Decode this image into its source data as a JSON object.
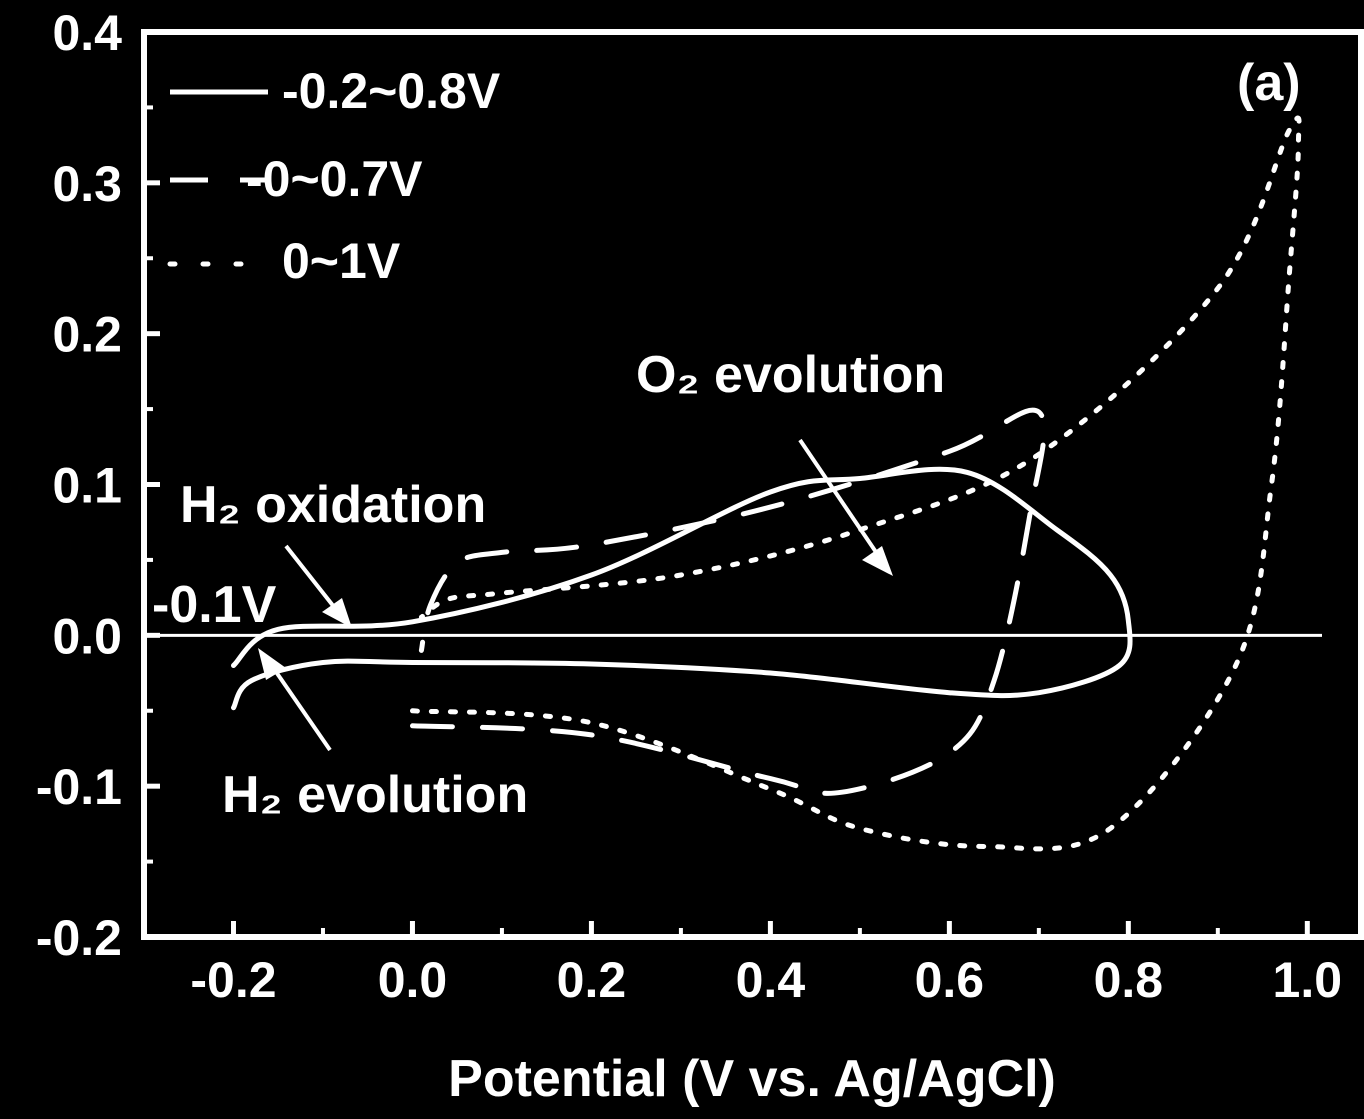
{
  "chart_data": {
    "type": "line",
    "panel_label": "(a)",
    "xlabel": "Potential (V vs. Ag/AgCl)",
    "ylabel": "",
    "xlim": [
      -0.3,
      1.06
    ],
    "ylim": [
      -0.2,
      0.4
    ],
    "x_ticks": [
      -0.2,
      0.0,
      0.2,
      0.4,
      0.6,
      0.8,
      1.0
    ],
    "x_tick_labels": [
      "-0.2",
      "0.0",
      "0.2",
      "0.4",
      "0.6",
      "0.8",
      "1.0"
    ],
    "y_ticks": [
      -0.2,
      -0.1,
      0.0,
      0.1,
      0.2,
      0.3,
      0.4
    ],
    "y_tick_labels": [
      "-0.2",
      "-0.1",
      "0.0",
      "0.1",
      "0.2",
      "0.3",
      "0.4"
    ],
    "zero_line": 0.0,
    "legend_position": "top-left",
    "series": [
      {
        "name": "-0.2~0.8V",
        "style": "solid",
        "x": [
          -0.2,
          -0.18,
          -0.1,
          0.0,
          0.2,
          0.4,
          0.6,
          0.7,
          0.79,
          0.8,
          0.78,
          0.72,
          0.62,
          0.5,
          0.4,
          0.2,
          0.0,
          -0.15,
          -0.2
        ],
        "y": [
          -0.048,
          -0.03,
          -0.018,
          -0.018,
          -0.019,
          -0.025,
          -0.038,
          -0.038,
          -0.02,
          0.01,
          0.04,
          0.07,
          0.108,
          0.104,
          0.095,
          0.04,
          0.009,
          0.004,
          -0.02
        ]
      },
      {
        "name": "-0~0.7V",
        "style": "dashed",
        "x": [
          0.0,
          0.2,
          0.4,
          0.48,
          0.6,
          0.65,
          0.69,
          0.7,
          0.6,
          0.4,
          0.2,
          0.1,
          0.05,
          0.02,
          0.01
        ],
        "y": [
          -0.06,
          -0.066,
          -0.095,
          -0.104,
          -0.078,
          -0.03,
          0.08,
          0.148,
          0.122,
          0.085,
          0.06,
          0.055,
          0.048,
          0.02,
          -0.01
        ]
      },
      {
        "name": "0~1V",
        "style": "dotted",
        "x": [
          0.0,
          0.2,
          0.4,
          0.5,
          0.64,
          0.78,
          0.92,
          0.96,
          0.98,
          0.99,
          0.98,
          0.9,
          0.7,
          0.5,
          0.3,
          0.1,
          0.04,
          0.01
        ],
        "y": [
          -0.05,
          -0.058,
          -0.102,
          -0.128,
          -0.14,
          -0.128,
          -0.02,
          0.1,
          0.24,
          0.325,
          0.335,
          0.23,
          0.12,
          0.07,
          0.04,
          0.028,
          0.024,
          0.012
        ]
      }
    ],
    "annotations": {
      "o2": "O₂ evolution",
      "h2_oxidation": "H₂ oxidation",
      "h2_evolution": "H₂ evolution",
      "minus_0_1v": "-0.1V"
    }
  }
}
